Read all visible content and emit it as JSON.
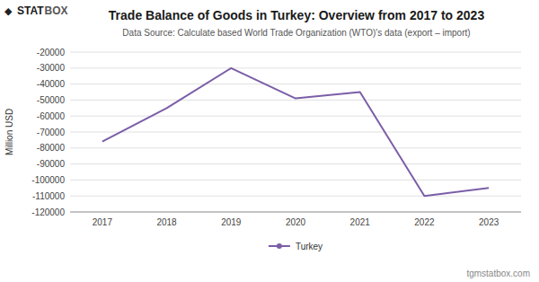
{
  "chart_data": {
    "type": "line",
    "title": "Trade Balance of Goods in Turkey: Overview from 2017 to 2023",
    "subtitle": "Data Source: Calculate based World Trade Organization (WTO)'s data (export – import)",
    "y_label": "Million USD",
    "annotations": [
      "◆",
      "STAT",
      "BOX",
      "tgmstatbox.com"
    ],
    "x": [
      2017,
      2018,
      2019,
      2020,
      2021,
      2022,
      2023
    ],
    "xlim": [
      2016.5,
      2023.5
    ],
    "xticks": [
      2017,
      2018,
      2019,
      2020,
      2021,
      2022,
      2023
    ],
    "series": [
      {
        "name": "Turkey",
        "color": "#7b5ea7",
        "values": [
          -76000,
          -55000,
          -30000,
          -49000,
          -45000,
          -110000,
          -105000
        ]
      }
    ],
    "ylim": [
      -120000,
      -20000
    ],
    "yticks": [
      -20000,
      -30000,
      -40000,
      -50000,
      -60000,
      -70000,
      -80000,
      -90000,
      -100000,
      -110000,
      -120000
    ],
    "grid": true,
    "legend": "bottom"
  }
}
